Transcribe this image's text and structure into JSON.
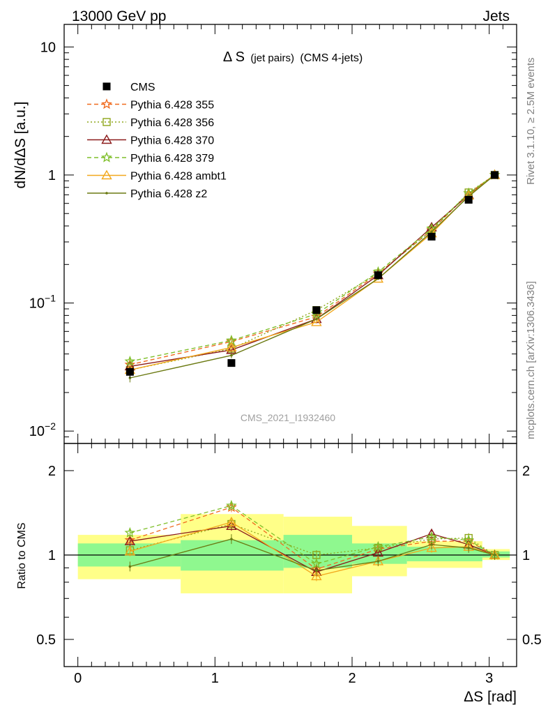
{
  "header": {
    "left": "13000 GeV pp",
    "right": "Jets"
  },
  "side": {
    "rivet": "Rivet 3.1.10, ≥ 2.5M events",
    "mcplots": "mcplots.cern.ch [arXiv:1306.3436]"
  },
  "analysis_id": "CMS_2021_I1932460",
  "chart_data": [
    {
      "type": "line",
      "panel": "main",
      "title": "Δ S (jet pairs) (CMS 4-jets)",
      "title_main": "Δ S",
      "title_small": "(jet pairs)",
      "title_tail": "(CMS 4-jets)",
      "ylabel": "dN/dΔS [a.u.]",
      "xlabel": "ΔS [rad]",
      "yscale": "log",
      "ylim": [
        0.008,
        15
      ],
      "xlim": [
        -0.1,
        3.2
      ],
      "y_ticks": [
        {
          "value": 0.01,
          "base": "10",
          "exp": "−2"
        },
        {
          "value": 0.1,
          "base": "10",
          "exp": "−1"
        },
        {
          "value": 1,
          "base": "1",
          "exp": ""
        },
        {
          "value": 10,
          "base": "10",
          "exp": ""
        }
      ],
      "x": [
        0.38,
        1.12,
        1.74,
        2.19,
        2.58,
        2.85,
        3.04
      ],
      "legend_placement": "top-left",
      "series": [
        {
          "name": "CMS",
          "color": "#000000",
          "marker": "square",
          "dash": "",
          "values": [
            0.029,
            0.034,
            0.088,
            0.165,
            0.33,
            0.64,
            1.0
          ],
          "errors": [
            0.003,
            0.001,
            0.002,
            0.004,
            0.005,
            0.01,
            0.01
          ]
        },
        {
          "name": "Pythia 6.428 355",
          "color": "#f06a1e",
          "marker": "star",
          "dash": "6,4",
          "values": [
            0.033,
            0.05,
            0.078,
            0.17,
            0.37,
            0.72,
            1.0
          ],
          "errors": [
            0.002,
            0.002,
            0.002,
            0.003,
            0.005,
            0.01,
            0.01
          ]
        },
        {
          "name": "Pythia 6.428 356",
          "color": "#8ea61a",
          "marker": "square-open",
          "dash": "2,3",
          "values": [
            0.03,
            0.044,
            0.088,
            0.17,
            0.37,
            0.73,
            1.0
          ],
          "errors": [
            0.002,
            0.002,
            0.002,
            0.003,
            0.005,
            0.01,
            0.01
          ]
        },
        {
          "name": "Pythia 6.428 370",
          "color": "#8b1a1a",
          "marker": "triangle-open",
          "dash": "",
          "values": [
            0.032,
            0.043,
            0.075,
            0.165,
            0.39,
            0.7,
            1.0
          ],
          "errors": [
            0.002,
            0.002,
            0.002,
            0.003,
            0.005,
            0.01,
            0.01
          ]
        },
        {
          "name": "Pythia 6.428 379",
          "color": "#7fbf2a",
          "marker": "star",
          "dash": "6,4",
          "values": [
            0.035,
            0.051,
            0.082,
            0.175,
            0.38,
            0.72,
            1.0
          ],
          "errors": [
            0.002,
            0.002,
            0.002,
            0.003,
            0.005,
            0.01,
            0.01
          ]
        },
        {
          "name": "Pythia 6.428 ambt1",
          "color": "#f2a81d",
          "marker": "triangle-open",
          "dash": "",
          "values": [
            0.03,
            0.045,
            0.071,
            0.155,
            0.35,
            0.69,
            1.0
          ],
          "errors": [
            0.002,
            0.002,
            0.002,
            0.003,
            0.005,
            0.01,
            0.01
          ]
        },
        {
          "name": "Pythia 6.428 z2",
          "color": "#6b7a12",
          "marker": "dot",
          "dash": "",
          "values": [
            0.026,
            0.039,
            0.075,
            0.155,
            0.36,
            0.68,
            1.0
          ],
          "errors": [
            0.002,
            0.002,
            0.002,
            0.003,
            0.005,
            0.01,
            0.01
          ]
        }
      ]
    },
    {
      "type": "line",
      "panel": "ratio",
      "ylabel": "Ratio to CMS",
      "xlabel": "ΔS [rad]",
      "yscale": "log",
      "ylim": [
        0.4,
        2.5
      ],
      "xlim": [
        -0.1,
        3.2
      ],
      "x_ticks": [
        0,
        1,
        2,
        3
      ],
      "y_ticks": [
        0.5,
        1,
        2
      ],
      "reference_line": 1,
      "bands": [
        {
          "x0": 0.0,
          "x1": 0.75,
          "stat_lo": 0.91,
          "stat_hi": 1.1,
          "syst_lo": 0.82,
          "syst_hi": 1.18
        },
        {
          "x0": 0.75,
          "x1": 1.5,
          "stat_lo": 0.88,
          "stat_hi": 1.13,
          "syst_lo": 0.73,
          "syst_hi": 1.4
        },
        {
          "x0": 1.5,
          "x1": 2.0,
          "stat_lo": 0.9,
          "stat_hi": 1.18,
          "syst_lo": 0.73,
          "syst_hi": 1.37
        },
        {
          "x0": 2.0,
          "x1": 2.4,
          "stat_lo": 0.93,
          "stat_hi": 1.1,
          "syst_lo": 0.84,
          "syst_hi": 1.27
        },
        {
          "x0": 2.4,
          "x1": 2.95,
          "stat_lo": 0.95,
          "stat_hi": 1.07,
          "syst_lo": 0.9,
          "syst_hi": 1.12
        },
        {
          "x0": 2.95,
          "x1": 3.15,
          "stat_lo": 0.98,
          "stat_hi": 1.03,
          "syst_lo": 0.96,
          "syst_hi": 1.05
        }
      ],
      "x": [
        0.38,
        1.12,
        1.74,
        2.19,
        2.58,
        2.85,
        3.04
      ],
      "series": [
        {
          "name": "Pythia 6.428 355",
          "values": [
            1.13,
            1.48,
            0.89,
            1.05,
            1.12,
            1.12,
            1.0
          ]
        },
        {
          "name": "Pythia 6.428 356",
          "values": [
            1.04,
            1.29,
            1.0,
            1.06,
            1.14,
            1.15,
            1.0
          ]
        },
        {
          "name": "Pythia 6.428 370",
          "values": [
            1.12,
            1.27,
            0.87,
            1.02,
            1.19,
            1.09,
            1.0
          ]
        },
        {
          "name": "Pythia 6.428 379",
          "values": [
            1.2,
            1.5,
            0.93,
            1.07,
            1.16,
            1.13,
            1.0
          ]
        },
        {
          "name": "Pythia 6.428 ambt1",
          "values": [
            1.03,
            1.31,
            0.84,
            0.95,
            1.06,
            1.07,
            1.0
          ]
        },
        {
          "name": "Pythia 6.428 z2",
          "values": [
            0.91,
            1.14,
            0.88,
            0.95,
            1.09,
            1.06,
            1.0
          ]
        }
      ]
    }
  ]
}
